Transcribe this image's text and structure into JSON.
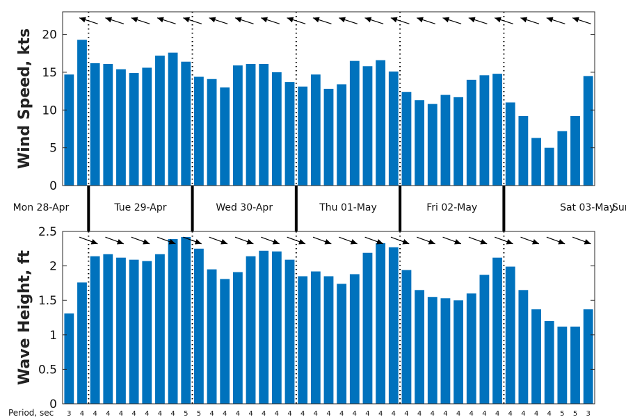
{
  "colors": {
    "bar": "#0072bd",
    "axis": "#262626",
    "arrow": "#000000"
  },
  "period_label": "Period, sec",
  "chart_data": [
    {
      "type": "bar",
      "title": "",
      "ylabel": "Wind Speed, kts",
      "ylim": [
        0,
        23
      ],
      "yticks": [
        0,
        5,
        10,
        15,
        20
      ],
      "values": [
        14.7,
        19.3,
        16.2,
        16.1,
        15.4,
        14.9,
        15.6,
        17.2,
        17.6,
        16.4,
        14.4,
        14.1,
        13.0,
        15.9,
        16.1,
        16.1,
        15.0,
        13.7,
        13.1,
        14.7,
        12.8,
        13.4,
        16.5,
        15.8,
        16.6,
        15.1,
        12.4,
        11.3,
        10.8,
        12.0,
        11.7,
        14.0,
        14.6,
        14.8,
        11.0,
        9.2,
        6.3,
        5.0,
        7.2,
        9.2,
        14.5
      ],
      "direction_arrows": "toward-left, pointing west-southwest",
      "grid": false,
      "legend": "none"
    },
    {
      "type": "bar",
      "title": "",
      "ylabel": "Wave Height, ft",
      "ylim": [
        0,
        2.5
      ],
      "yticks": [
        "0",
        "0.5",
        "1",
        "1.5",
        "2",
        "2.5"
      ],
      "values": [
        1.31,
        1.76,
        2.14,
        2.17,
        2.12,
        2.09,
        2.07,
        2.17,
        2.39,
        2.42,
        2.25,
        1.95,
        1.81,
        1.91,
        2.14,
        2.22,
        2.21,
        2.09,
        1.85,
        1.92,
        1.85,
        1.74,
        1.88,
        2.19,
        2.33,
        2.27,
        1.94,
        1.65,
        1.55,
        1.53,
        1.5,
        1.6,
        1.87,
        2.12,
        1.99,
        1.65,
        1.37,
        1.2,
        1.12,
        1.12,
        1.37
      ],
      "periods": [
        3,
        4,
        4,
        4,
        4,
        4,
        4,
        4,
        4,
        5,
        5,
        4,
        4,
        4,
        4,
        4,
        4,
        4,
        4,
        4,
        4,
        4,
        4,
        4,
        4,
        4,
        4,
        4,
        4,
        4,
        4,
        4,
        4,
        4,
        4,
        4,
        4,
        4,
        5,
        5,
        3
      ],
      "direction_arrows": "pointing east-southeast",
      "grid": false,
      "legend": "none"
    }
  ],
  "days": [
    "Mon 28-Apr",
    "Tue 29-Apr",
    "Wed 30-Apr",
    "Thu 01-May",
    "Fri 02-May",
    "Sat 03-May",
    "Sun"
  ],
  "day_boundaries": [
    1.5,
    9.5,
    17.5,
    25.5,
    33.5
  ]
}
